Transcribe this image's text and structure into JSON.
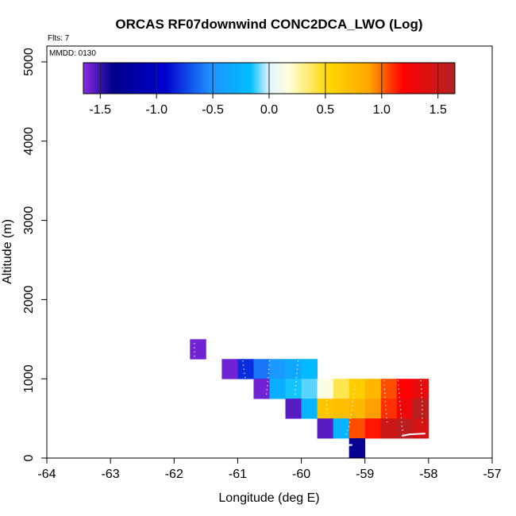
{
  "chart_data": {
    "type": "heatmap",
    "title": "ORCAS RF07downwind CONC2DCA_LWO (Log)",
    "annotations": {
      "flights": "Flts: 7",
      "date": "MMDD: 0130"
    },
    "xlabel": "Longitude (deg E)",
    "ylabel": "Altitude (m)",
    "xlim": [
      -64,
      -57
    ],
    "ylim": [
      0,
      5200
    ],
    "x_ticks": [
      -64,
      -63,
      -62,
      -61,
      -60,
      -59,
      -58,
      -57
    ],
    "y_ticks": [
      0,
      1000,
      2000,
      3000,
      4000,
      5000
    ],
    "cell_width_deg": 0.25,
    "cell_height_m": 250,
    "colorbar": {
      "min": -1.65,
      "max": 1.65,
      "ticks": [
        -1.5,
        -1.0,
        -0.5,
        0.0,
        0.5,
        1.0,
        1.5
      ],
      "tick_labels": [
        "-1.5",
        "-1.0",
        "-0.5",
        "0.0",
        "0.5",
        "1.0",
        "1.5"
      ],
      "colors": [
        "#8a2be2",
        "#00008b",
        "#0000cd",
        "#1e90ff",
        "#00bfff",
        "#e0f4ff",
        "#ffffe0",
        "#ffd700",
        "#ffa500",
        "#ff0000",
        "#b22222"
      ],
      "positions": [
        0.0,
        0.08,
        0.22,
        0.34,
        0.45,
        0.5,
        0.55,
        0.66,
        0.77,
        0.86,
        1.0
      ]
    },
    "cells": [
      {
        "lon": -61.75,
        "alt": 1250,
        "value": -1.6
      },
      {
        "lon": -61.25,
        "alt": 1000,
        "value": -1.6
      },
      {
        "lon": -61.0,
        "alt": 1000,
        "value": -0.8
      },
      {
        "lon": -60.75,
        "alt": 1000,
        "value": -0.6
      },
      {
        "lon": -60.5,
        "alt": 1000,
        "value": -0.45
      },
      {
        "lon": -60.25,
        "alt": 1000,
        "value": -0.35
      },
      {
        "lon": -60.0,
        "alt": 1000,
        "value": -0.2
      },
      {
        "lon": -60.75,
        "alt": 750,
        "value": -1.6
      },
      {
        "lon": -60.5,
        "alt": 750,
        "value": -0.3
      },
      {
        "lon": -60.25,
        "alt": 750,
        "value": -0.15
      },
      {
        "lon": -60.0,
        "alt": 750,
        "value": -0.1
      },
      {
        "lon": -59.75,
        "alt": 750,
        "value": 0.15
      },
      {
        "lon": -59.5,
        "alt": 750,
        "value": 0.4
      },
      {
        "lon": -59.25,
        "alt": 750,
        "value": 0.6
      },
      {
        "lon": -59.0,
        "alt": 750,
        "value": 0.75
      },
      {
        "lon": -58.75,
        "alt": 750,
        "value": 1.05
      },
      {
        "lon": -58.5,
        "alt": 750,
        "value": 1.2
      },
      {
        "lon": -58.25,
        "alt": 750,
        "value": 1.35
      },
      {
        "lon": -60.25,
        "alt": 500,
        "value": -1.55
      },
      {
        "lon": -60.0,
        "alt": 500,
        "value": -0.25
      },
      {
        "lon": -59.75,
        "alt": 500,
        "value": 0.65
      },
      {
        "lon": -59.5,
        "alt": 500,
        "value": 0.7
      },
      {
        "lon": -59.25,
        "alt": 500,
        "value": 0.75
      },
      {
        "lon": -59.0,
        "alt": 500,
        "value": 0.9
      },
      {
        "lon": -58.75,
        "alt": 500,
        "value": 1.1
      },
      {
        "lon": -58.5,
        "alt": 500,
        "value": 1.3
      },
      {
        "lon": -58.25,
        "alt": 500,
        "value": 1.6
      },
      {
        "lon": -59.75,
        "alt": 250,
        "value": -1.55
      },
      {
        "lon": -59.5,
        "alt": 250,
        "value": -0.25
      },
      {
        "lon": -59.25,
        "alt": 250,
        "value": 1.05
      },
      {
        "lon": -59.0,
        "alt": 250,
        "value": 1.15
      },
      {
        "lon": -58.75,
        "alt": 250,
        "value": 1.5
      },
      {
        "lon": -58.5,
        "alt": 250,
        "value": 1.6
      },
      {
        "lon": -58.25,
        "alt": 250,
        "value": 1.45
      },
      {
        "lon": -59.25,
        "alt": 0,
        "value": -1.4
      }
    ],
    "flight_track": {
      "color": "#ffffff",
      "dotted_paths": [
        [
          [
            -61.68,
            1450
          ],
          [
            -61.68,
            1280
          ]
        ],
        [
          [
            -60.92,
            1230
          ],
          [
            -60.88,
            1000
          ],
          [
            -60.85,
            820
          ]
        ],
        [
          [
            -60.5,
            1230
          ],
          [
            -60.52,
            1000
          ],
          [
            -60.55,
            800
          ]
        ],
        [
          [
            -60.05,
            1230
          ],
          [
            -60.08,
            1000
          ],
          [
            -60.1,
            780
          ]
        ],
        [
          [
            -59.6,
            780
          ],
          [
            -59.6,
            520
          ]
        ],
        [
          [
            -59.15,
            920
          ],
          [
            -59.2,
            650
          ],
          [
            -59.25,
            400
          ],
          [
            -59.3,
            290
          ]
        ],
        [
          [
            -58.7,
            980
          ],
          [
            -58.68,
            700
          ],
          [
            -58.65,
            450
          ]
        ],
        [
          [
            -58.48,
            980
          ],
          [
            -58.45,
            700
          ],
          [
            -58.42,
            420
          ],
          [
            -58.4,
            300
          ]
        ],
        [
          [
            -58.12,
            980
          ],
          [
            -58.1,
            700
          ],
          [
            -58.1,
            420
          ]
        ]
      ],
      "solid_paths": [
        [
          [
            -58.42,
            280
          ],
          [
            -58.3,
            300
          ],
          [
            -58.05,
            310
          ]
        ],
        [
          [
            -59.4,
            160
          ],
          [
            -59.2,
            165
          ]
        ]
      ]
    }
  }
}
